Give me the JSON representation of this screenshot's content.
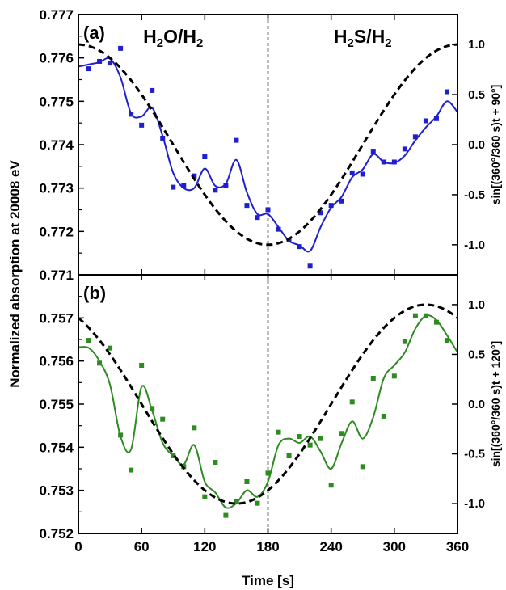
{
  "chart_data": [
    {
      "panel_label": "(a)",
      "type": "scatter",
      "region_labels": [
        {
          "text": "H₂O/H₂",
          "x": 90,
          "y": 0.7765
        },
        {
          "text": "H₂S/H₂",
          "x": 270,
          "y": 0.7765
        }
      ],
      "xlabel": "Time [s]",
      "ylabel": "Normalized absorption at 20008 eV",
      "y2label": "sin[(360°/360 s)t + 90°]",
      "xlim": [
        0,
        360
      ],
      "ylim": [
        0.771,
        0.777
      ],
      "y2lim": [
        -1.3,
        1.3
      ],
      "xticks": [
        0,
        60,
        120,
        180,
        240,
        300,
        360
      ],
      "yticks": [
        "0.771",
        "0.772",
        "0.773",
        "0.774",
        "0.775",
        "0.776",
        "0.777"
      ],
      "y2ticks": [
        "-1.0",
        "-0.5",
        "0.0",
        "0.5",
        "1.0"
      ],
      "divider_x": 180,
      "series": [
        {
          "kind": "points",
          "color": "#1f1fd0",
          "x": [
            10,
            20,
            30,
            40,
            50,
            60,
            70,
            80,
            90,
            100,
            110,
            120,
            130,
            140,
            150,
            160,
            170,
            180,
            190,
            200,
            210,
            220,
            230,
            240,
            250,
            260,
            270,
            280,
            290,
            300,
            310,
            320,
            330,
            340,
            350
          ],
          "y": [
            0.77575,
            0.77592,
            0.77588,
            0.77622,
            0.7747,
            0.77445,
            0.77525,
            0.77415,
            0.77302,
            0.77305,
            0.77328,
            0.77372,
            0.77295,
            0.77305,
            0.7741,
            0.7726,
            0.77232,
            0.7725,
            0.77205,
            0.7718,
            0.77165,
            0.7712,
            0.77243,
            0.7726,
            0.7727,
            0.77335,
            0.77332,
            0.77385,
            0.7736,
            0.7736,
            0.7739,
            0.77418,
            0.77455,
            0.7746,
            0.77522
          ]
        },
        {
          "kind": "smooth-fit",
          "color": "#1f1fd0",
          "x": [
            0,
            10,
            20,
            30,
            40,
            50,
            60,
            70,
            80,
            90,
            100,
            110,
            120,
            130,
            140,
            150,
            160,
            170,
            180,
            190,
            200,
            210,
            220,
            230,
            240,
            250,
            260,
            270,
            280,
            290,
            300,
            310,
            320,
            330,
            340,
            350,
            360
          ],
          "y": [
            0.7758,
            0.77585,
            0.7759,
            0.77598,
            0.77555,
            0.77472,
            0.77465,
            0.77485,
            0.7742,
            0.77335,
            0.773,
            0.773,
            0.77345,
            0.77305,
            0.7731,
            0.77365,
            0.7729,
            0.7724,
            0.7724,
            0.7721,
            0.77178,
            0.77168,
            0.77155,
            0.7721,
            0.77255,
            0.7728,
            0.77325,
            0.77343,
            0.77378,
            0.7736,
            0.77358,
            0.77375,
            0.7741,
            0.7744,
            0.77465,
            0.775,
            0.77475
          ]
        },
        {
          "kind": "dashed-sine",
          "color": "#000000",
          "axis": "right",
          "phase_deg": 90,
          "period_s": 360,
          "amplitude": 1
        }
      ]
    },
    {
      "panel_label": "(b)",
      "type": "scatter",
      "xlabel": "Time [s]",
      "ylabel": "Normalized absorption at 20008 eV",
      "y2label": "sin[(360°/360 s)t + 120°]",
      "xlim": [
        0,
        360
      ],
      "ylim": [
        0.752,
        0.758
      ],
      "y2lim": [
        -1.3,
        1.3
      ],
      "xticks": [
        0,
        60,
        120,
        180,
        240,
        300,
        360
      ],
      "yticks": [
        "0.752",
        "0.753",
        "0.754",
        "0.755",
        "0.756",
        "0.757"
      ],
      "y2ticks": [
        "-1.0",
        "-0.5",
        "0.0",
        "0.5",
        "1.0"
      ],
      "divider_x": 180,
      "series": [
        {
          "kind": "points",
          "color": "#2e8b22",
          "x": [
            10,
            20,
            30,
            40,
            50,
            60,
            70,
            80,
            90,
            100,
            110,
            120,
            130,
            140,
            150,
            160,
            170,
            180,
            190,
            200,
            210,
            220,
            230,
            240,
            250,
            260,
            270,
            280,
            290,
            300,
            310,
            320,
            330,
            340,
            350
          ],
          "y": [
            0.75648,
            0.75595,
            0.7563,
            0.75428,
            0.75347,
            0.7559,
            0.7549,
            0.75465,
            0.7538,
            0.75355,
            0.75445,
            0.75285,
            0.75365,
            0.75242,
            0.75275,
            0.7532,
            0.7527,
            0.7534,
            0.75435,
            0.7538,
            0.75425,
            0.75405,
            0.7542,
            0.75312,
            0.75432,
            0.75505,
            0.75355,
            0.7556,
            0.75472,
            0.75565,
            0.75645,
            0.75705,
            0.75705,
            0.7569,
            0.75648
          ]
        },
        {
          "kind": "smooth-fit",
          "color": "#2e8b22",
          "x": [
            0,
            10,
            20,
            30,
            40,
            50,
            60,
            70,
            80,
            90,
            100,
            110,
            120,
            130,
            140,
            150,
            160,
            170,
            180,
            190,
            200,
            210,
            220,
            230,
            240,
            250,
            260,
            270,
            280,
            290,
            300,
            310,
            320,
            330,
            340,
            350,
            360
          ],
          "y": [
            0.75632,
            0.7563,
            0.756,
            0.75545,
            0.75425,
            0.75395,
            0.7554,
            0.75485,
            0.7541,
            0.7538,
            0.7536,
            0.75405,
            0.7532,
            0.75295,
            0.7526,
            0.7527,
            0.753,
            0.75285,
            0.7532,
            0.75405,
            0.7542,
            0.7541,
            0.75425,
            0.7539,
            0.7535,
            0.7541,
            0.7546,
            0.7542,
            0.7547,
            0.7556,
            0.7559,
            0.7562,
            0.75675,
            0.75705,
            0.75695,
            0.7566,
            0.7562
          ]
        },
        {
          "kind": "dashed-sine",
          "color": "#000000",
          "axis": "right",
          "phase_deg": 120,
          "period_s": 360,
          "amplitude": 1
        }
      ]
    }
  ]
}
